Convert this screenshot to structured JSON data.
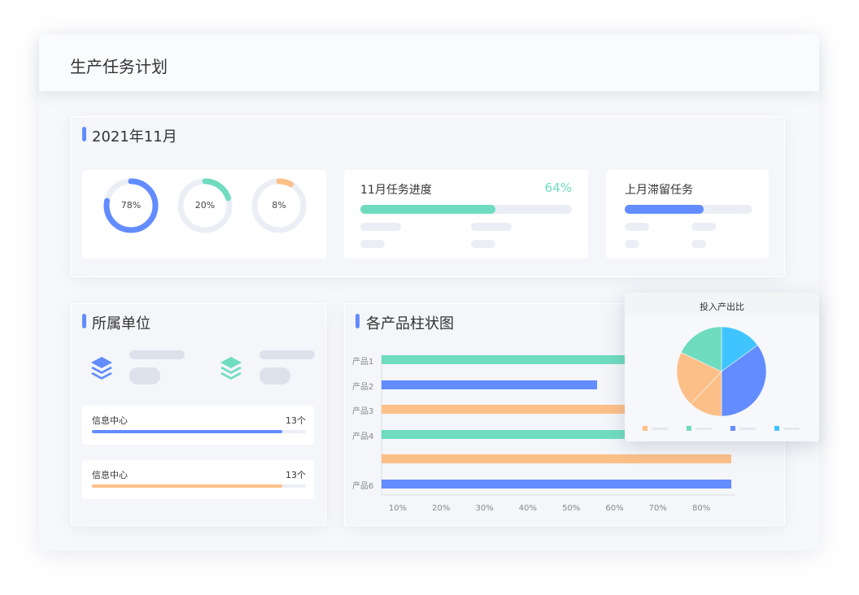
{
  "page": {
    "title": "生产任务计划"
  },
  "colors": {
    "blue": "#628cff",
    "green": "#6fdcbf",
    "orange": "#fdbf88",
    "cyan": "#40c4ff",
    "track": "#ebeef5"
  },
  "overview": {
    "title": "2021年11月",
    "rings": [
      {
        "label": "78%",
        "value": 78,
        "color": "#628cff"
      },
      {
        "label": "20%",
        "value": 20,
        "color": "#6fdcbf"
      },
      {
        "label": "8%",
        "value": 8,
        "color": "#fdbf88"
      }
    ],
    "progress": {
      "title": "11月任务进度",
      "value_label": "64%",
      "value": 64
    },
    "carryover": {
      "title": "上月滞留任务",
      "fill_percent": 62
    }
  },
  "units": {
    "title": "所属单位",
    "icons": [
      "layers-icon",
      "layers-icon"
    ],
    "items": [
      {
        "name": "信息中心",
        "count": "13个",
        "fill_percent": 89,
        "color": "#628cff"
      },
      {
        "name": "信息中心",
        "count": "13个",
        "fill_percent": 89,
        "color": "#fdbf88"
      }
    ]
  },
  "chart_data": [
    {
      "type": "bar",
      "orientation": "horizontal",
      "title": "各产品柱状图",
      "categories": [
        "产品1",
        "产品2",
        "产品3",
        "产品4",
        "",
        "产品6"
      ],
      "values": [
        75,
        56,
        73,
        72,
        87,
        87
      ],
      "colors": [
        "#6fdcbf",
        "#628cff",
        "#fdbf88",
        "#6fdcbf",
        "#fdbf88",
        "#628cff"
      ],
      "xticks": [
        "10%",
        "20%",
        "30%",
        "40%",
        "50%",
        "60%",
        "70%",
        "80%"
      ],
      "xlim": [
        0,
        90
      ],
      "grid": false
    },
    {
      "type": "pie",
      "title": "投入产出比",
      "values": [
        15,
        35,
        12,
        20,
        18
      ],
      "colors": [
        "#40c4ff",
        "#628cff",
        "#fdbf88",
        "#fdbf88",
        "#6fdcbf"
      ],
      "legend_colors": [
        "#fdbf88",
        "#6fdcbf",
        "#628cff",
        "#40c4ff"
      ],
      "legend_placement": "bottom"
    }
  ]
}
